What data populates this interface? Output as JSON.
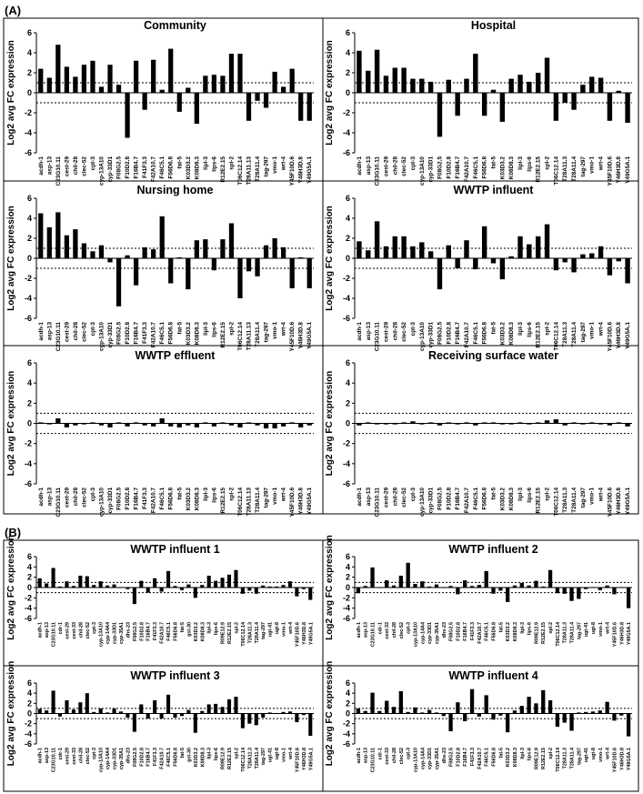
{
  "figure": {
    "panel_a_label": "(A)",
    "panel_b_label": "(B)",
    "y_axis_label": "Log2 avg FC expression"
  },
  "chart_data": [
    {
      "type": "bar",
      "panel": "A",
      "title": "Community",
      "ylim": [
        -6,
        6
      ],
      "yticks": [
        -6,
        -4,
        -2,
        0,
        2,
        4,
        6
      ],
      "threshold_lines": [
        1,
        -1
      ],
      "categories": [
        "acdh-1",
        "asp-13",
        "C23G10.11",
        "cest-29",
        "chil-28",
        "clec-52",
        "cpt-3",
        "cyp-13A10",
        "cyp-33D1",
        "F08G2.5",
        "F10D2.8",
        "F16B4.7",
        "F41F3.3",
        "F42A10.7",
        "F46C5.1",
        "F56D6.8",
        "fat-5",
        "K03D3.2",
        "K08D8.3",
        "lipl-3",
        "lips-6",
        "R12E2.15",
        "spl-2",
        "T06C12.14",
        "T28A11.13",
        "T28A11.4",
        "tag-297",
        "vmo-1",
        "wrt-4",
        "Y45F10D.6",
        "Y46H3D.8",
        "Y49G5A.1"
      ],
      "values": [
        2.4,
        1.5,
        4.8,
        2.6,
        1.6,
        2.8,
        3.2,
        0.6,
        2.8,
        0.8,
        -4.5,
        3.2,
        -1.7,
        3.3,
        0.3,
        4.4,
        -1.9,
        0.5,
        -3.1,
        1.7,
        1.8,
        1.7,
        3.9,
        3.9,
        -2.8,
        -0.8,
        -1.5,
        2.1,
        0.6,
        2.4,
        -2.8,
        -2.8
      ]
    },
    {
      "type": "bar",
      "panel": "A",
      "title": "Hospital",
      "ylim": [
        -6,
        6
      ],
      "yticks": [
        -6,
        -4,
        -2,
        0,
        2,
        4,
        6
      ],
      "threshold_lines": [
        1,
        -1
      ],
      "categories": [
        "acdh-1",
        "asp-13",
        "C23G10.11",
        "cest-29",
        "chil-28",
        "clec-52",
        "cpt-3",
        "cyp-13A10",
        "cyp-33D1",
        "F08G2.5",
        "F10D2.8",
        "F16B4.7",
        "F42A10.7",
        "F46C5.1",
        "F56D6.8",
        "fat-5",
        "K03D3.2",
        "K08D8.3",
        "lipl-3",
        "lips-6",
        "R12E2.15",
        "spl-2",
        "T06C12.14",
        "T28A11.3",
        "T28A11.4",
        "tag-297",
        "vmo-1",
        "wrt-4",
        "Y45F10D.6",
        "Y46H3D.8",
        "Y49G5A.1"
      ],
      "values": [
        4.2,
        2.2,
        4.3,
        1.7,
        2.5,
        2.5,
        1.4,
        1.4,
        1.1,
        -4.4,
        1.3,
        -2.3,
        1.4,
        3.9,
        -2.3,
        0.3,
        -2.9,
        1.4,
        1.8,
        1.1,
        2.0,
        3.5,
        -2.8,
        -1.0,
        -1.7,
        0.8,
        1.6,
        1.5,
        -2.8,
        0.2,
        -3.0
      ]
    },
    {
      "type": "bar",
      "panel": "A",
      "title": "Nursing home",
      "ylim": [
        -6,
        6
      ],
      "yticks": [
        -6,
        -4,
        -2,
        0,
        2,
        4,
        6
      ],
      "threshold_lines": [
        1,
        -1
      ],
      "categories": [
        "acdh-1",
        "asp-13",
        "C23G10.11",
        "cest-29",
        "chil-28",
        "clec-52",
        "cpt-3",
        "cyp-13A10",
        "cyp-33D1",
        "F08G2.5",
        "F10D2.8",
        "F16B4.7",
        "F41F3.3",
        "F42A10.7",
        "F46C5.1",
        "F56D6.8",
        "fat-5",
        "K03D3.2",
        "K08D8.3",
        "lipl-3",
        "lips-6",
        "R12E2.15",
        "spl-2",
        "T06C12.14",
        "T28A11.13",
        "T28A11.4",
        "tag-297",
        "vmo-1",
        "wrt-4",
        "Y45F10D.6",
        "Y46H3D.8",
        "Y49G5A.1"
      ],
      "values": [
        4.5,
        3.1,
        4.6,
        2.3,
        2.9,
        1.5,
        0.7,
        1.3,
        -0.4,
        -4.8,
        0.3,
        -2.7,
        1.1,
        0.9,
        4.2,
        -2.5,
        0.1,
        -3.1,
        1.8,
        1.9,
        -1.2,
        1.9,
        3.5,
        -4.0,
        -1.3,
        -1.8,
        1.3,
        2.0,
        1.1,
        -3.0,
        0.1,
        -3.0
      ]
    },
    {
      "type": "bar",
      "panel": "A",
      "title": "WWTP influent",
      "ylim": [
        -6,
        6
      ],
      "yticks": [
        -6,
        -4,
        -2,
        0,
        2,
        4,
        6
      ],
      "threshold_lines": [
        1,
        -1
      ],
      "categories": [
        "acdh-1",
        "asp-13",
        "C23G10.11",
        "cest-29",
        "chil-28",
        "clec-52",
        "cpt-3",
        "cyp-13A10",
        "cyp-33D1",
        "F08G2.5",
        "F10D2.8",
        "F16B4.7",
        "F42A10.7",
        "F46C5.1",
        "F56D6.8",
        "fat-5",
        "K03D3.2",
        "K08D8.3",
        "lipl-3",
        "lips-6",
        "R12E2.15",
        "spl-2",
        "T06C12.14",
        "T28A11.3",
        "T28A11.4",
        "tag-297",
        "vmo-1",
        "wrt-4",
        "Y45F10D.6",
        "Y46H3D.8",
        "Y49G5A.1"
      ],
      "values": [
        1.7,
        0.8,
        3.7,
        1.2,
        2.2,
        2.2,
        1.2,
        1.6,
        0.7,
        -3.1,
        1.3,
        -1.0,
        1.8,
        -1.1,
        3.2,
        -0.5,
        -2.1,
        0.2,
        2.2,
        1.4,
        2.2,
        3.4,
        -1.2,
        -0.4,
        -1.4,
        0.4,
        0.5,
        1.2,
        -1.7,
        -0.3,
        -2.5
      ]
    },
    {
      "type": "bar",
      "panel": "A",
      "title": "WWTP effluent",
      "ylim": [
        -6,
        6
      ],
      "yticks": [
        -6,
        -4,
        -2,
        0,
        2,
        4,
        6
      ],
      "threshold_lines": [
        1,
        -1
      ],
      "categories": [
        "acdh-1",
        "asp-13",
        "C23G10.11",
        "cest-29",
        "chil-28",
        "clec-52",
        "cpt-3",
        "cyp-13A10",
        "cyp-33D1",
        "F08G2.5",
        "F10D2.8",
        "F16B4.7",
        "F41F3.3",
        "F42A10.7",
        "F46C5.1",
        "F56D6.8",
        "fat-5",
        "K03D3.2",
        "K08D8.3",
        "lipl-3",
        "lips-6",
        "R12E2.15",
        "spl-2",
        "T06C12.14",
        "T28A11.13",
        "T28A11.4",
        "tag-297",
        "vmo-1",
        "wrt-4",
        "Y45F10D.6",
        "Y46H3D.8",
        "Y49G5A.1"
      ],
      "values": [
        0.1,
        -0.1,
        0.5,
        -0.4,
        -0.2,
        -0.1,
        0.1,
        -0.2,
        -0.4,
        0.1,
        -0.3,
        0.1,
        -0.2,
        -0.3,
        0.5,
        -0.3,
        -0.4,
        -0.2,
        -0.4,
        0.1,
        -0.3,
        0.1,
        -0.2,
        -0.4,
        0.1,
        -0.2,
        -0.5,
        -0.5,
        -0.3,
        0.1,
        -0.4,
        -0.2
      ]
    },
    {
      "type": "bar",
      "panel": "A",
      "title": "Receiving surface water",
      "ylim": [
        -6,
        6
      ],
      "yticks": [
        -6,
        -4,
        -2,
        0,
        2,
        4,
        6
      ],
      "threshold_lines": [
        1,
        -1
      ],
      "categories": [
        "acdh-1",
        "asp-13",
        "C23G10.11",
        "cest-29",
        "chil-28",
        "clec-52",
        "cpt-3",
        "cyp-13A10",
        "cyp-33D1",
        "F08G2.5",
        "F10D2.8",
        "F16B4.7",
        "F42A10.7",
        "F46C5.1",
        "F56D6.8",
        "fat-5",
        "K03D3.2",
        "K08D8.3",
        "lipl-3",
        "lips-6",
        "R12E2.15",
        "spl-2",
        "T06C12.14",
        "T28A11.3",
        "T28A11.4",
        "tag-297",
        "vmo-1",
        "wrt-4",
        "Y45F10D.6",
        "Y46H3D.8",
        "Y49G5A.1"
      ],
      "values": [
        -0.2,
        0.1,
        -0.1,
        -0.1,
        -0.1,
        0.1,
        0.2,
        -0.1,
        0.1,
        -0.2,
        0.1,
        -0.1,
        0.1,
        -0.2,
        0.1,
        0.1,
        -0.1,
        -0.1,
        0.1,
        -0.1,
        0.1,
        0.3,
        0.4,
        -0.2,
        0.1,
        -0.1,
        0.1,
        -0.1,
        -0.2,
        0.1,
        -0.3
      ]
    },
    {
      "type": "bar",
      "panel": "B",
      "title": "WWTP influent 1",
      "ylim": [
        -6,
        6
      ],
      "yticks": [
        -6,
        -4,
        -2,
        0,
        2,
        4,
        6
      ],
      "threshold_lines": [
        1,
        -1
      ],
      "categories": [
        "acdh-1",
        "asp-13",
        "C23G10.11",
        "cdr-1",
        "cest-29",
        "cest-33",
        "chil-28",
        "clec-52",
        "cpt-3",
        "cyp-13A10",
        "cyp-14A4",
        "cyp-33D1",
        "cyp-35A1",
        "dhs-23",
        "F08G2.5",
        "F10D2.8",
        "F16B4.7",
        "F41F3.3",
        "F42A10.7",
        "F46C5.1",
        "F56D6.8",
        "fat-5",
        "gst-30",
        "K03D3.2",
        "K08D8.3",
        "lipl-3",
        "lips-6",
        "R09E12.9",
        "R12E2.15",
        "spl-2",
        "T06C12.14",
        "T28A11.3",
        "T28A11.4",
        "tag-297",
        "ugt-41",
        "ugt-8",
        "vmo-1",
        "wrt-4",
        "Y45F10D.6",
        "Y46H3D.8",
        "Y49G5A.1"
      ],
      "values": [
        1.8,
        0.8,
        3.8,
        0.2,
        1.2,
        0.3,
        2.3,
        2.2,
        0.5,
        1.2,
        0.4,
        0.6,
        0.1,
        -0.3,
        -3.2,
        1.3,
        -1.0,
        1.8,
        -0.8,
        3.2,
        0.3,
        -0.5,
        0.6,
        -2.0,
        0.5,
        2.3,
        1.3,
        1.9,
        2.5,
        3.4,
        -1.2,
        -0.6,
        -1.2,
        0.4,
        0.2,
        0.2,
        0.5,
        1.2,
        -1.7,
        -0.3,
        -2.4
      ]
    },
    {
      "type": "bar",
      "panel": "B",
      "title": "WWTP influent 2",
      "ylim": [
        -6,
        6
      ],
      "yticks": [
        -6,
        -4,
        -2,
        0,
        2,
        4,
        6
      ],
      "threshold_lines": [
        1,
        -1
      ],
      "categories": [
        "acdh-1",
        "asp-13",
        "C23G10.11",
        "cdr-1",
        "cest-33",
        "chil-28",
        "clec-52",
        "cpt-3",
        "cyp-13A10",
        "cyp-14A4",
        "cyp-33D1",
        "cyp-35A1",
        "dhs-23",
        "F08G2.5",
        "F10D2.8",
        "F16B4.7",
        "F41F3.3",
        "F42A10.7",
        "F46C5.1",
        "F56D6.8",
        "fat-5",
        "K03D3.2",
        "K08D8.3",
        "lipl-3",
        "lips-6",
        "R09E12.9",
        "R12E2.15",
        "spl-2",
        "T06C12.14",
        "T28A11.3",
        "T28A11.4",
        "tag-297",
        "ugt-41",
        "ugt-8",
        "vmo-1",
        "wrt-4",
        "Y45F10D.6",
        "Y46H3D.8",
        "Y49G5A.1"
      ],
      "values": [
        -1.1,
        0.3,
        3.9,
        0.1,
        1.4,
        0.4,
        2.3,
        4.8,
        0.7,
        1.2,
        0.2,
        0.6,
        0.1,
        0.3,
        -1.3,
        1.4,
        0.3,
        0.5,
        3.2,
        -1.2,
        -0.6,
        -2.8,
        0.4,
        0.9,
        0.4,
        1.3,
        0.2,
        3.4,
        -1.1,
        -1.2,
        -2.6,
        -2.2,
        -0.3,
        0.1,
        -0.5,
        0.4,
        -1.3,
        0.1,
        -4.0
      ]
    },
    {
      "type": "bar",
      "panel": "B",
      "title": "WWTP influent 3",
      "ylim": [
        -6,
        6
      ],
      "yticks": [
        -6,
        -4,
        -2,
        0,
        2,
        4,
        6
      ],
      "threshold_lines": [
        1,
        -1
      ],
      "categories": [
        "acdh-1",
        "asp-13",
        "C23G10.11",
        "cdr-1",
        "cest-29",
        "cest-33",
        "chil-28",
        "clec-52",
        "cpt-3",
        "cyp-13A10",
        "cyp-14A4",
        "cyp-33D1",
        "cyp-35A1",
        "dhs-23",
        "F08G2.5",
        "F10D2.8",
        "F16B4.7",
        "F41F3.3",
        "F42A10.7",
        "F46C5.1",
        "F56D6.8",
        "fat-5",
        "gst-30",
        "K03D3.2",
        "K08D8.3",
        "lipl-3",
        "lips-6",
        "R09E12.9",
        "R12E2.15",
        "spl-2",
        "T06C12.14",
        "T28A11.3",
        "T28A11.4",
        "tag-297",
        "ugt-41",
        "ugt-8",
        "vmo-1",
        "wrt-4",
        "Y45F10D.6",
        "Y46H3D.8",
        "Y49G5A.1"
      ],
      "values": [
        0.9,
        0.6,
        4.5,
        -0.6,
        2.6,
        0.8,
        2.2,
        4.0,
        0.3,
        1.0,
        0.2,
        1.0,
        0.4,
        -0.8,
        -3.6,
        1.8,
        -1.0,
        2.6,
        -1.0,
        3.7,
        -0.8,
        -0.5,
        0.7,
        -3.8,
        0.5,
        1.8,
        1.9,
        1.3,
        2.8,
        3.3,
        -2.9,
        -2.0,
        -2.3,
        -0.8,
        0.2,
        0.1,
        0.3,
        0.4,
        -1.7,
        -0.3,
        -4.4
      ]
    },
    {
      "type": "bar",
      "panel": "B",
      "title": "WWTP influent 4",
      "ylim": [
        -6,
        6
      ],
      "yticks": [
        -6,
        -4,
        -2,
        0,
        2,
        4,
        6
      ],
      "threshold_lines": [
        1,
        -1
      ],
      "categories": [
        "acdh-1",
        "asp-13",
        "C23G10.11",
        "cdr-1",
        "cest-33",
        "chil-28",
        "clec-52",
        "cpt-3",
        "cyp-13A10",
        "cyp-14A4",
        "cyp-33D1",
        "cyp-35A1",
        "dhs-23",
        "F08G2.5",
        "F10D2.8",
        "F16B4.7",
        "F41F3.3",
        "F42A10.7",
        "F46C5.1",
        "F56D6.8",
        "fat-5",
        "K03D3.2",
        "K08D8.3",
        "lipl-3",
        "lips-6",
        "R09E12.9",
        "R12E2.15",
        "spl-2",
        "T06C12.14",
        "T28A11.3",
        "T28A11.4",
        "tag-297",
        "ugt-41",
        "ugt-8",
        "vmo-1",
        "wrt-4",
        "Y45F10D.6",
        "Y46H3D.8",
        "Y49G5A.1"
      ],
      "values": [
        1.0,
        0.5,
        4.1,
        0.5,
        2.5,
        1.3,
        4.4,
        0.3,
        1.2,
        0.2,
        0.7,
        0.2,
        -0.5,
        -3.5,
        2.2,
        -1.5,
        4.8,
        -0.6,
        3.6,
        -1.2,
        -0.4,
        -3.7,
        0.6,
        1.5,
        3.3,
        2.0,
        4.6,
        2.6,
        -2.6,
        -1.8,
        -3.4,
        0.2,
        0.3,
        0.4,
        0.6,
        2.3,
        -1.4,
        -0.4,
        -4.5
      ]
    }
  ]
}
